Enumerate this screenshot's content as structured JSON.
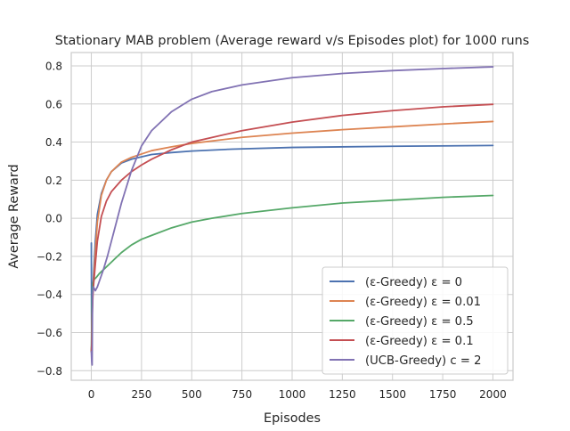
{
  "chart_data": {
    "type": "line",
    "title": "Stationary MAB problem (Average reward v/s Episodes plot) for 1000 runs",
    "xlabel": "Episodes",
    "ylabel": "Average Reward",
    "xlim": [
      -100,
      2100
    ],
    "ylim": [
      -0.85,
      0.87
    ],
    "xticks": [
      0,
      250,
      500,
      750,
      1000,
      1250,
      1500,
      1750,
      2000
    ],
    "yticks": [
      -0.8,
      -0.6,
      -0.4,
      -0.2,
      0.0,
      0.2,
      0.4,
      0.6,
      0.8
    ],
    "xtick_labels": [
      "0",
      "250",
      "500",
      "750",
      "1000",
      "1250",
      "1500",
      "1750",
      "2000"
    ],
    "ytick_labels": [
      "−0.8",
      "−0.6",
      "−0.4",
      "−0.2",
      "0.0",
      "0.2",
      "0.4",
      "0.6",
      "0.8"
    ],
    "grid": true,
    "legend_position": "lower-right",
    "series": [
      {
        "name": "(ε-Greedy) ε = 0",
        "color": "#4c72b0",
        "x": [
          0,
          1,
          2,
          3,
          5,
          8,
          12,
          20,
          30,
          50,
          75,
          100,
          150,
          200,
          300,
          400,
          500,
          700,
          1000,
          1500,
          2000
        ],
        "y": [
          -0.13,
          -0.5,
          -0.72,
          -0.62,
          -0.45,
          -0.36,
          -0.28,
          -0.12,
          0.02,
          0.13,
          0.2,
          0.245,
          0.29,
          0.31,
          0.335,
          0.345,
          0.353,
          0.363,
          0.372,
          0.378,
          0.382
        ]
      },
      {
        "name": "(ε-Greedy) ε = 0.01",
        "color": "#dd8452",
        "x": [
          0,
          2,
          4,
          8,
          12,
          20,
          30,
          50,
          75,
          100,
          150,
          200,
          300,
          400,
          500,
          750,
          1000,
          1250,
          1500,
          1750,
          2000
        ],
        "y": [
          -0.7,
          -0.66,
          -0.5,
          -0.38,
          -0.32,
          -0.18,
          -0.02,
          0.12,
          0.2,
          0.245,
          0.295,
          0.32,
          0.355,
          0.375,
          0.393,
          0.425,
          0.447,
          0.465,
          0.48,
          0.495,
          0.508
        ]
      },
      {
        "name": "(ε-Greedy) ε = 0.5",
        "color": "#55a868",
        "x": [
          0,
          2,
          4,
          8,
          15,
          25,
          40,
          60,
          100,
          150,
          200,
          250,
          300,
          400,
          500,
          600,
          750,
          1000,
          1250,
          1500,
          1750,
          2000
        ],
        "y": [
          -0.7,
          -0.55,
          -0.42,
          -0.34,
          -0.32,
          -0.31,
          -0.29,
          -0.27,
          -0.23,
          -0.18,
          -0.14,
          -0.11,
          -0.09,
          -0.05,
          -0.02,
          0.0,
          0.025,
          0.055,
          0.08,
          0.095,
          0.11,
          0.12
        ]
      },
      {
        "name": "(ε-Greedy) ε = 0.1",
        "color": "#c44e52",
        "x": [
          0,
          2,
          4,
          8,
          12,
          20,
          30,
          50,
          75,
          100,
          150,
          200,
          250,
          300,
          400,
          500,
          750,
          1000,
          1250,
          1500,
          1750,
          2000
        ],
        "y": [
          -0.7,
          -0.66,
          -0.52,
          -0.4,
          -0.34,
          -0.24,
          -0.12,
          0.01,
          0.09,
          0.14,
          0.2,
          0.245,
          0.28,
          0.31,
          0.36,
          0.4,
          0.46,
          0.505,
          0.54,
          0.565,
          0.585,
          0.598
        ]
      },
      {
        "name": "(UCB-Greedy) c = 2",
        "color": "#8172b3",
        "x": [
          0,
          2,
          4,
          6,
          10,
          15,
          20,
          30,
          40,
          60,
          80,
          100,
          150,
          200,
          250,
          300,
          400,
          500,
          600,
          750,
          1000,
          1250,
          1500,
          1750,
          2000
        ],
        "y": [
          -0.7,
          -0.75,
          -0.77,
          -0.4,
          -0.36,
          -0.37,
          -0.38,
          -0.36,
          -0.33,
          -0.27,
          -0.2,
          -0.12,
          0.08,
          0.25,
          0.38,
          0.46,
          0.56,
          0.625,
          0.665,
          0.7,
          0.738,
          0.76,
          0.775,
          0.786,
          0.795
        ]
      }
    ]
  }
}
